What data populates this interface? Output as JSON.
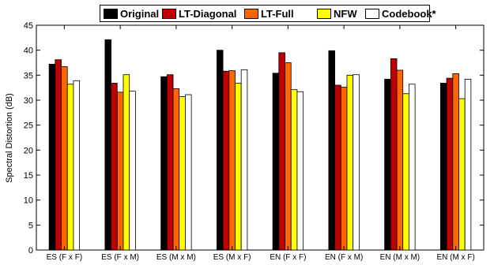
{
  "chart_data": {
    "type": "bar",
    "title": "",
    "xlabel": "",
    "ylabel": "Spectral Distortion (dB)",
    "ylim": [
      0,
      45
    ],
    "yticks": [
      0,
      5,
      10,
      15,
      20,
      25,
      30,
      35,
      40,
      45
    ],
    "grid": false,
    "legend_position": "top",
    "categories": [
      "ES (F x F)",
      "ES (F x M)",
      "ES (M x M)",
      "ES (M x F)",
      "EN (F x F)",
      "EN (F x M)",
      "EN (M x M)",
      "EN (M x F)"
    ],
    "series": [
      {
        "name": "Original",
        "color": "#000000",
        "values": [
          37.2,
          42.1,
          34.7,
          40.0,
          35.4,
          39.9,
          34.2,
          33.4
        ]
      },
      {
        "name": "LT-Diagonal",
        "color": "#c00000",
        "values": [
          38.1,
          33.4,
          35.1,
          35.8,
          39.5,
          33.0,
          38.3,
          34.4
        ]
      },
      {
        "name": "LT-Full",
        "color": "#ff6600",
        "values": [
          36.7,
          31.6,
          32.3,
          35.9,
          37.5,
          32.6,
          36.0,
          35.3
        ]
      },
      {
        "name": "NFW",
        "color": "#ffff00",
        "values": [
          33.2,
          35.1,
          30.7,
          33.4,
          32.1,
          35.0,
          31.3,
          30.3
        ]
      },
      {
        "name": "Codebook*",
        "color": "#ffffff",
        "values": [
          33.9,
          31.8,
          31.1,
          36.1,
          31.7,
          35.1,
          33.2,
          34.2
        ]
      }
    ]
  }
}
